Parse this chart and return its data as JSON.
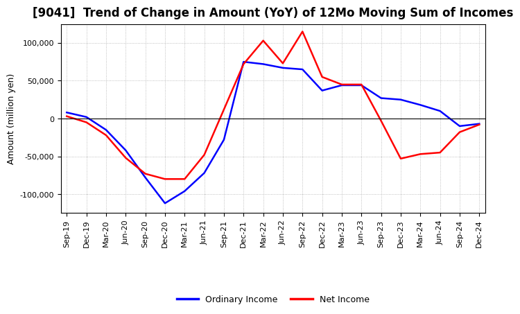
{
  "title": "[9041]  Trend of Change in Amount (YoY) of 12Mo Moving Sum of Incomes",
  "ylabel": "Amount (million yen)",
  "x_labels": [
    "Sep-19",
    "Dec-19",
    "Mar-20",
    "Jun-20",
    "Sep-20",
    "Dec-20",
    "Mar-21",
    "Jun-21",
    "Sep-21",
    "Dec-21",
    "Mar-22",
    "Jun-22",
    "Sep-22",
    "Dec-22",
    "Mar-23",
    "Jun-23",
    "Sep-23",
    "Dec-23",
    "Mar-24",
    "Jun-24",
    "Sep-24",
    "Dec-24"
  ],
  "ordinary_income": [
    8000,
    2000,
    -15000,
    -42000,
    -78000,
    -112000,
    -96000,
    -72000,
    -28000,
    75000,
    72000,
    67000,
    65000,
    37000,
    44000,
    44000,
    27000,
    25000,
    18000,
    10000,
    -10000,
    -7000
  ],
  "net_income": [
    3000,
    -5000,
    -22000,
    -52000,
    -73000,
    -80000,
    -80000,
    -48000,
    12000,
    72000,
    103000,
    73000,
    115000,
    55000,
    45000,
    45000,
    -3000,
    -53000,
    -47000,
    -45000,
    -18000,
    -8000
  ],
  "ordinary_income_color": "#0000FF",
  "net_income_color": "#FF0000",
  "ylim": [
    -125000,
    125000
  ],
  "yticks": [
    -100000,
    -50000,
    0,
    50000,
    100000
  ],
  "background_color": "#FFFFFF",
  "grid_color": "#999999",
  "legend_labels": [
    "Ordinary Income",
    "Net Income"
  ],
  "line_width": 1.8,
  "title_fontsize": 12,
  "ylabel_fontsize": 9,
  "tick_fontsize": 8
}
